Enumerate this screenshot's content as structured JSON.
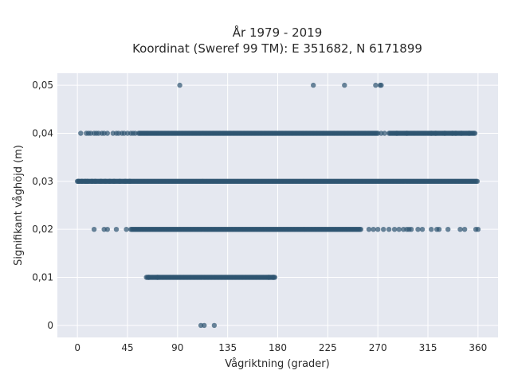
{
  "chart_data": {
    "type": "scatter",
    "title_line1": "År 1979 - 2019",
    "title_line2": "Koordinat (Sweref 99 TM): E 351682, N 6171899",
    "xlabel": "Vågriktning (grader)",
    "ylabel": "Signifikant våghöjd (m)",
    "xlim": [
      -18,
      378
    ],
    "ylim": [
      -0.0025,
      0.0525
    ],
    "x_ticks": [
      0,
      45,
      90,
      135,
      180,
      225,
      270,
      315,
      360
    ],
    "x_tick_labels": [
      "0",
      "45",
      "90",
      "135",
      "180",
      "225",
      "270",
      "315",
      "360"
    ],
    "y_ticks": [
      0,
      0.01,
      0.02,
      0.03,
      0.04,
      0.05
    ],
    "y_tick_labels": [
      "0",
      "0,01",
      "0,02",
      "0,03",
      "0,04",
      "0,05"
    ],
    "grid": true,
    "background": "#e5e8f0",
    "marker_color": "#2e5470",
    "series": [
      {
        "y": 0.05,
        "dense": [],
        "sparse_x": [
          92,
          212,
          240,
          268,
          272,
          273
        ]
      },
      {
        "y": 0.04,
        "dense": [
          [
            55,
            270
          ],
          [
            280,
            358
          ]
        ],
        "sparse_x": [
          3,
          8,
          10,
          12,
          15,
          17,
          19,
          22,
          24,
          27,
          32,
          35,
          37,
          40,
          42,
          45,
          48,
          50,
          52,
          270,
          273,
          276,
          287,
          296,
          318,
          322,
          330,
          337,
          340,
          345,
          352
        ]
      },
      {
        "y": 0.03,
        "dense": [
          [
            0,
            360
          ]
        ],
        "sparse_x": [
          1,
          4,
          7,
          9,
          13,
          16,
          21,
          25,
          29,
          33,
          38,
          43,
          47
        ]
      },
      {
        "y": 0.02,
        "dense": [
          [
            48,
            255
          ]
        ],
        "sparse_x": [
          15,
          24,
          27,
          35,
          44,
          262,
          266,
          270,
          275,
          280,
          285,
          289,
          293,
          296,
          298,
          300,
          306,
          310,
          318,
          323,
          325,
          333,
          344,
          348,
          358,
          360
        ]
      },
      {
        "y": 0.01,
        "dense": [
          [
            62,
            178
          ]
        ],
        "sparse_x": [
          64,
          72,
          172,
          176
        ]
      },
      {
        "y": 0,
        "dense": [],
        "sparse_x": [
          111,
          114,
          123
        ]
      }
    ]
  }
}
